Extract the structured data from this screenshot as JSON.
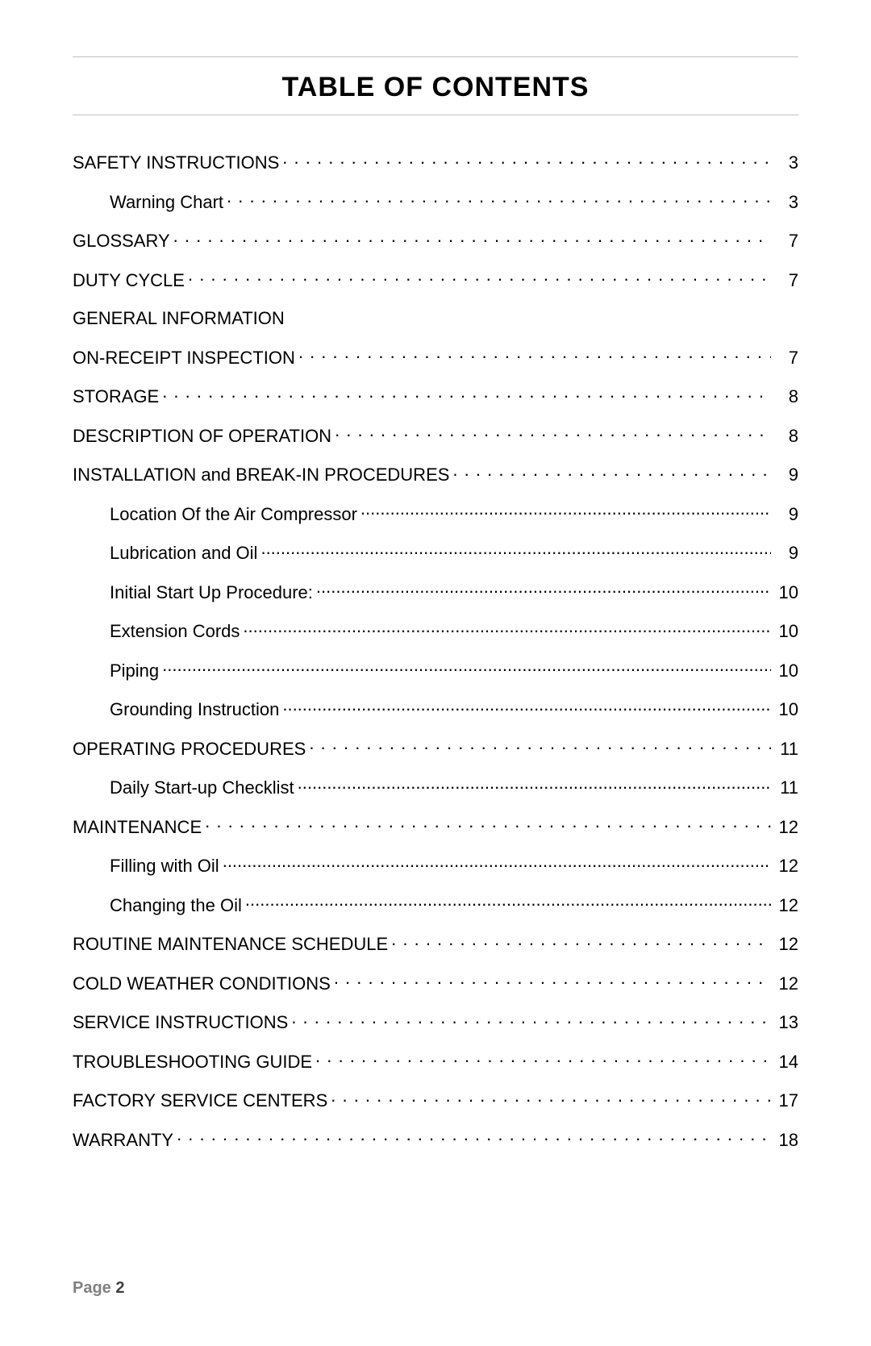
{
  "title": "TABLE OF CONTENTS",
  "footer_label": "Page",
  "footer_number": "2",
  "entries": [
    {
      "label": "SAFETY INSTRUCTIONS",
      "page": "3",
      "level": 0
    },
    {
      "label": "Warning Chart",
      "page": "3",
      "level": 1
    },
    {
      "label": "GLOSSARY",
      "page": "7",
      "level": 0
    },
    {
      "label": "DUTY CYCLE",
      "page": "7",
      "level": 0
    },
    {
      "label": "GENERAL INFORMATION",
      "page": "",
      "level": 0
    },
    {
      "label": "ON-RECEIPT INSPECTION",
      "page": "7",
      "level": 0
    },
    {
      "label": "STORAGE",
      "page": "8",
      "level": 0
    },
    {
      "label": "DESCRIPTION OF OPERATION",
      "page": "8",
      "level": 0
    },
    {
      "label": "INSTALLATION and BREAK-IN PROCEDURES",
      "page": "9",
      "level": 0
    },
    {
      "label": "Location Of the Air Compressor",
      "page": "9",
      "level": 1,
      "tight": true
    },
    {
      "label": "Lubrication and Oil",
      "page": "9",
      "level": 1,
      "tight": true
    },
    {
      "label": "Initial Start Up Procedure:",
      "page": "10",
      "level": 1,
      "tight": true
    },
    {
      "label": "Extension Cords",
      "page": "10",
      "level": 1,
      "tight": true
    },
    {
      "label": "Piping",
      "page": "10",
      "level": 1,
      "tight": true
    },
    {
      "label": "Grounding Instruction",
      "page": "10",
      "level": 1,
      "tight": true
    },
    {
      "label": "OPERATING PROCEDURES",
      "page": "11",
      "level": 0
    },
    {
      "label": "Daily Start-up Checklist",
      "page": "11",
      "level": 1,
      "tight": true
    },
    {
      "label": "MAINTENANCE",
      "page": "12",
      "level": 0
    },
    {
      "label": "Filling with Oil",
      "page": "12",
      "level": 1,
      "tight": true
    },
    {
      "label": "Changing the Oil",
      "page": "12",
      "level": 1,
      "tight": true
    },
    {
      "label": "ROUTINE MAINTENANCE SCHEDULE",
      "page": "12",
      "level": 0
    },
    {
      "label": "COLD WEATHER CONDITIONS",
      "page": "12",
      "level": 0
    },
    {
      "label": "SERVICE INSTRUCTIONS",
      "page": "13",
      "level": 0
    },
    {
      "label": "TROUBLESHOOTING GUIDE",
      "page": "14",
      "level": 0
    },
    {
      "label": "FACTORY SERVICE CENTERS",
      "page": "17",
      "level": 0
    },
    {
      "label": "WARRANTY",
      "page": "18",
      "level": 0
    }
  ]
}
